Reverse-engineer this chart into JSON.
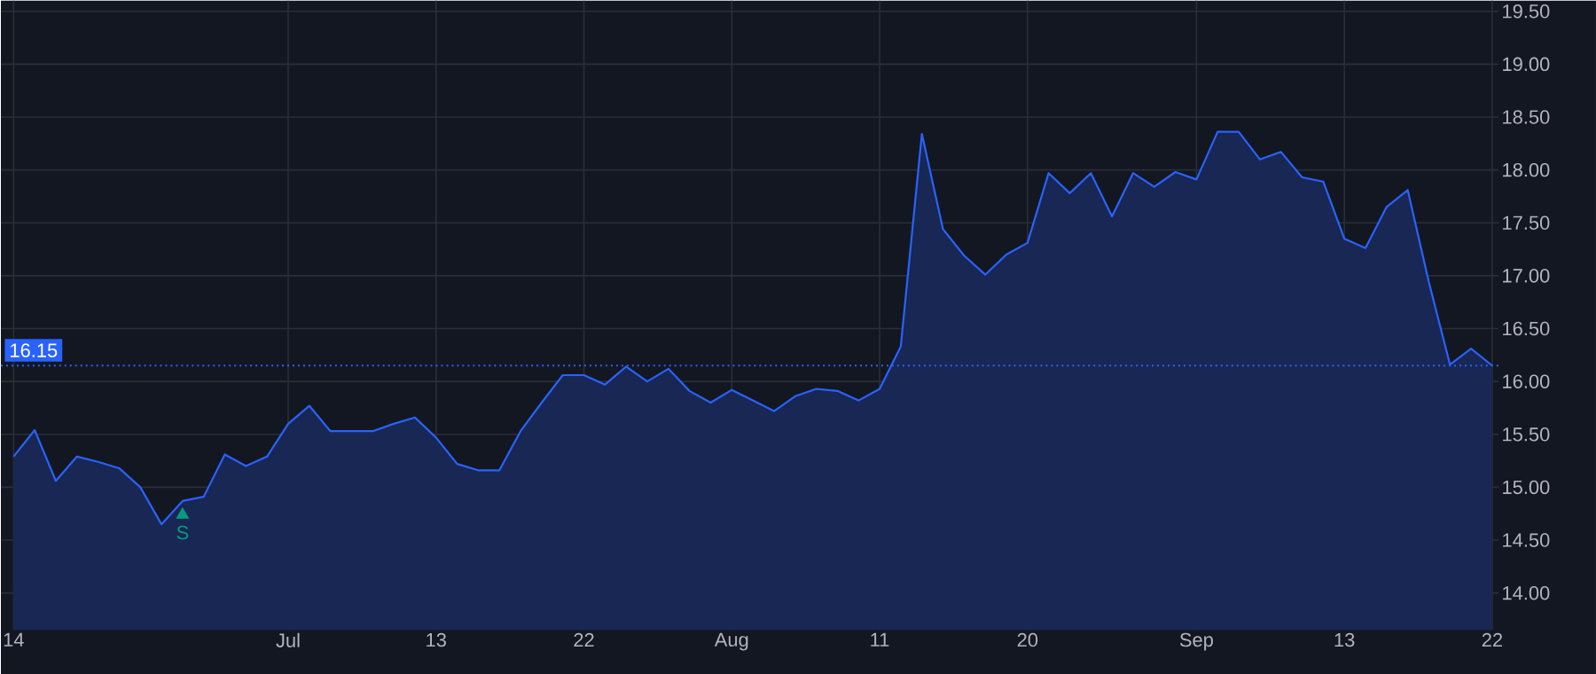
{
  "chart_data": {
    "type": "area",
    "categories": [
      "14",
      null,
      null,
      null,
      null,
      null,
      null,
      null,
      null,
      null,
      null,
      null,
      null,
      "Jul",
      null,
      null,
      null,
      null,
      null,
      null,
      "13",
      null,
      null,
      null,
      null,
      null,
      null,
      "22",
      null,
      null,
      null,
      null,
      null,
      null,
      "Aug",
      null,
      null,
      null,
      null,
      null,
      null,
      "11",
      null,
      null,
      null,
      null,
      null,
      null,
      "20",
      null,
      null,
      null,
      null,
      null,
      null,
      null,
      "Sep",
      null,
      null,
      null,
      null,
      null,
      null,
      "13",
      null,
      null,
      null,
      null,
      null,
      null,
      "22"
    ],
    "series": [
      {
        "color": "#2962ff",
        "values": [
          15.29,
          15.54,
          15.06,
          15.29,
          15.24,
          15.18,
          15.0,
          14.65,
          14.87,
          14.91,
          15.31,
          15.2,
          15.29,
          15.6,
          15.77,
          15.53,
          15.53,
          15.53,
          15.6,
          15.66,
          15.47,
          15.22,
          15.16,
          15.16,
          15.53,
          15.8,
          16.06,
          16.06,
          15.97,
          16.14,
          16.0,
          16.12,
          15.91,
          15.8,
          15.92,
          15.82,
          15.72,
          15.86,
          15.93,
          15.91,
          15.82,
          15.93,
          16.33,
          18.34,
          17.44,
          17.19,
          17.01,
          17.2,
          17.31,
          17.97,
          17.78,
          17.97,
          17.56,
          17.97,
          17.84,
          17.98,
          17.91,
          18.36,
          18.36,
          18.1,
          18.17,
          17.93,
          17.89,
          17.35,
          17.26,
          17.65,
          17.81,
          16.94,
          16.16,
          16.31,
          16.15
        ]
      },
      {
        "type": "scatter",
        "name": "S",
        "color": "#089981",
        "marker": "triangle",
        "values": [
          null,
          null,
          null,
          null,
          null,
          null,
          null,
          null,
          14.74,
          null,
          null,
          null,
          null,
          null,
          null,
          null,
          null,
          null,
          null,
          null,
          null,
          null,
          null,
          null,
          null,
          null,
          null,
          null,
          null,
          null,
          null,
          null,
          null,
          null,
          null,
          null,
          null,
          null,
          null,
          null,
          null,
          null,
          null,
          null,
          null,
          null,
          null,
          null,
          null,
          null,
          null,
          null,
          null,
          null,
          null,
          null,
          null,
          null,
          null,
          null,
          null,
          null,
          null,
          null,
          null,
          null,
          null,
          null,
          null,
          null,
          null
        ]
      }
    ],
    "ylim": [
      13.65,
      19.6
    ],
    "yticks": [
      {
        "value": 14,
        "label": "14.00"
      },
      {
        "value": 14.5,
        "label": "14.50"
      },
      {
        "value": 15,
        "label": "15.00"
      },
      {
        "value": 15.5,
        "label": "15.50"
      },
      {
        "value": 16,
        "label": "16.00"
      },
      {
        "value": 16.5,
        "label": "16.50"
      },
      {
        "value": 17,
        "label": "17.00"
      },
      {
        "value": 17.5,
        "label": "17.50"
      },
      {
        "value": 18,
        "label": "18.00"
      },
      {
        "value": 18.5,
        "label": "18.50"
      },
      {
        "value": 19,
        "label": "19.00"
      },
      {
        "value": 19.5,
        "label": "19.50"
      }
    ],
    "grid": true,
    "ref_lines": [
      {
        "axis": "y",
        "value": 16.15,
        "label": "16.15",
        "color": "#2962ff",
        "line_style": "dotted"
      }
    ]
  }
}
